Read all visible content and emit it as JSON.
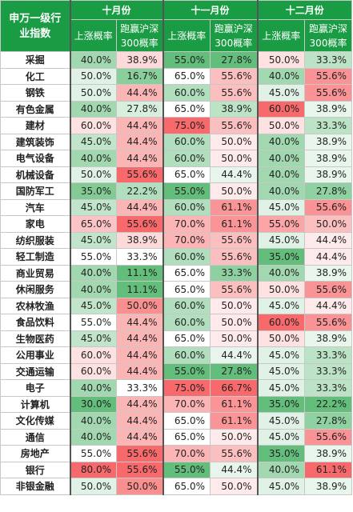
{
  "table": {
    "corner_label": "申万一级行业指数",
    "months": [
      "十月份",
      "十一月份",
      "十二月份"
    ],
    "sub_headers": [
      "上涨概率",
      "跑赢沪深300概率"
    ],
    "colors": {
      "header_bg": "#1a9c44",
      "up_high": "#f8696b",
      "neutral": "#ffffff",
      "outperform_high": "#63be7b"
    },
    "rows": [
      {
        "industry": "采掘",
        "values": [
          "40.0%",
          "38.9%",
          "55.0%",
          "27.8%",
          "50.0%",
          "33.3%"
        ]
      },
      {
        "industry": "化工",
        "values": [
          "50.0%",
          "16.7%",
          "65.0%",
          "55.6%",
          "40.0%",
          "55.6%"
        ]
      },
      {
        "industry": "钢铁",
        "values": [
          "50.0%",
          "44.4%",
          "60.0%",
          "55.6%",
          "45.0%",
          "55.6%"
        ]
      },
      {
        "industry": "有色金属",
        "values": [
          "40.0%",
          "27.8%",
          "65.0%",
          "38.9%",
          "60.0%",
          "38.9%"
        ]
      },
      {
        "industry": "建材",
        "values": [
          "60.0%",
          "44.4%",
          "75.0%",
          "55.6%",
          "50.0%",
          "33.3%"
        ]
      },
      {
        "industry": "建筑装饰",
        "values": [
          "45.0%",
          "44.4%",
          "60.0%",
          "50.0%",
          "40.0%",
          "38.9%"
        ]
      },
      {
        "industry": "电气设备",
        "values": [
          "40.0%",
          "44.4%",
          "60.0%",
          "50.0%",
          "40.0%",
          "38.9%"
        ]
      },
      {
        "industry": "机械设备",
        "values": [
          "50.0%",
          "55.6%",
          "65.0%",
          "44.4%",
          "40.0%",
          "38.9%"
        ]
      },
      {
        "industry": "国防军工",
        "values": [
          "35.0%",
          "22.2%",
          "55.0%",
          "50.0%",
          "40.0%",
          "27.8%"
        ]
      },
      {
        "industry": "汽车",
        "values": [
          "45.0%",
          "44.4%",
          "60.0%",
          "61.1%",
          "45.0%",
          "55.6%"
        ]
      },
      {
        "industry": "家电",
        "values": [
          "65.0%",
          "55.6%",
          "70.0%",
          "61.1%",
          "55.0%",
          "50.0%"
        ]
      },
      {
        "industry": "纺织服装",
        "values": [
          "45.0%",
          "38.9%",
          "70.0%",
          "55.6%",
          "45.0%",
          "44.4%"
        ]
      },
      {
        "industry": "轻工制造",
        "values": [
          "55.0%",
          "33.3%",
          "60.0%",
          "55.6%",
          "35.0%",
          "44.4%"
        ]
      },
      {
        "industry": "商业贸易",
        "values": [
          "40.0%",
          "11.1%",
          "65.0%",
          "33.3%",
          "40.0%",
          "38.9%"
        ]
      },
      {
        "industry": "休闲服务",
        "values": [
          "40.0%",
          "11.1%",
          "65.0%",
          "55.6%",
          "50.0%",
          "55.6%"
        ]
      },
      {
        "industry": "农林牧渔",
        "values": [
          "45.0%",
          "50.0%",
          "60.0%",
          "50.0%",
          "45.0%",
          "44.4%"
        ]
      },
      {
        "industry": "食品饮料",
        "values": [
          "55.0%",
          "44.4%",
          "60.0%",
          "50.0%",
          "60.0%",
          "55.6%"
        ]
      },
      {
        "industry": "生物医药",
        "values": [
          "45.0%",
          "44.4%",
          "65.0%",
          "50.0%",
          "50.0%",
          "38.9%"
        ]
      },
      {
        "industry": "公用事业",
        "values": [
          "60.0%",
          "44.4%",
          "60.0%",
          "44.4%",
          "45.0%",
          "33.3%"
        ]
      },
      {
        "industry": "交通运输",
        "values": [
          "60.0%",
          "44.4%",
          "55.0%",
          "27.8%",
          "45.0%",
          "33.3%"
        ]
      },
      {
        "industry": "电子",
        "values": [
          "40.0%",
          "33.3%",
          "75.0%",
          "66.7%",
          "45.0%",
          "33.3%"
        ]
      },
      {
        "industry": "计算机",
        "values": [
          "30.0%",
          "44.4%",
          "70.0%",
          "61.1%",
          "35.0%",
          "22.2%"
        ]
      },
      {
        "industry": "文化传媒",
        "values": [
          "40.0%",
          "44.4%",
          "65.0%",
          "61.1%",
          "45.0%",
          "27.8%"
        ]
      },
      {
        "industry": "通信",
        "values": [
          "40.0%",
          "44.4%",
          "65.0%",
          "50.0%",
          "45.0%",
          "55.6%"
        ]
      },
      {
        "industry": "房地产",
        "values": [
          "55.0%",
          "55.6%",
          "70.0%",
          "55.6%",
          "35.0%",
          "38.9%"
        ]
      },
      {
        "industry": "银行",
        "values": [
          "80.0%",
          "55.6%",
          "55.0%",
          "44.4%",
          "40.0%",
          "61.1%"
        ]
      },
      {
        "industry": "非银金融",
        "values": [
          "50.0%",
          "50.0%",
          "65.0%",
          "50.0%",
          "45.0%",
          "38.9%"
        ]
      }
    ]
  },
  "chart_data": {
    "type": "table",
    "title": "",
    "row_header": "申万一级行业指数",
    "column_groups": [
      "十月份",
      "十一月份",
      "十二月份"
    ],
    "columns": [
      "上涨概率",
      "跑赢沪深300概率"
    ],
    "categories": [
      "采掘",
      "化工",
      "钢铁",
      "有色金属",
      "建材",
      "建筑装饰",
      "电气设备",
      "机械设备",
      "国防军工",
      "汽车",
      "家电",
      "纺织服装",
      "轻工制造",
      "商业贸易",
      "休闲服务",
      "农林牧渔",
      "食品饮料",
      "生物医药",
      "公用事业",
      "交通运输",
      "电子",
      "计算机",
      "文化传媒",
      "通信",
      "房地产",
      "银行",
      "非银金融"
    ],
    "series": [
      {
        "name": "十月份 上涨概率",
        "values": [
          40.0,
          50.0,
          50.0,
          40.0,
          60.0,
          45.0,
          40.0,
          50.0,
          35.0,
          45.0,
          65.0,
          45.0,
          55.0,
          40.0,
          40.0,
          45.0,
          55.0,
          45.0,
          60.0,
          60.0,
          40.0,
          30.0,
          40.0,
          40.0,
          55.0,
          80.0,
          50.0
        ]
      },
      {
        "name": "十月份 跑赢沪深300概率",
        "values": [
          38.9,
          16.7,
          44.4,
          27.8,
          44.4,
          44.4,
          44.4,
          55.6,
          22.2,
          44.4,
          55.6,
          38.9,
          33.3,
          11.1,
          11.1,
          50.0,
          44.4,
          44.4,
          44.4,
          44.4,
          33.3,
          44.4,
          44.4,
          44.4,
          55.6,
          55.6,
          50.0
        ]
      },
      {
        "name": "十一月份 上涨概率",
        "values": [
          55.0,
          65.0,
          60.0,
          65.0,
          75.0,
          60.0,
          60.0,
          65.0,
          55.0,
          60.0,
          70.0,
          70.0,
          60.0,
          65.0,
          65.0,
          60.0,
          60.0,
          65.0,
          60.0,
          55.0,
          75.0,
          70.0,
          65.0,
          65.0,
          70.0,
          55.0,
          65.0
        ]
      },
      {
        "name": "十一月份 跑赢沪深300概率",
        "values": [
          27.8,
          55.6,
          55.6,
          38.9,
          55.6,
          50.0,
          50.0,
          44.4,
          50.0,
          61.1,
          61.1,
          55.6,
          55.6,
          33.3,
          55.6,
          50.0,
          50.0,
          50.0,
          44.4,
          27.8,
          66.7,
          61.1,
          61.1,
          50.0,
          55.6,
          44.4,
          50.0
        ]
      },
      {
        "name": "十二月份 上涨概率",
        "values": [
          50.0,
          40.0,
          45.0,
          60.0,
          50.0,
          40.0,
          40.0,
          40.0,
          40.0,
          45.0,
          55.0,
          45.0,
          35.0,
          40.0,
          50.0,
          45.0,
          60.0,
          50.0,
          45.0,
          45.0,
          45.0,
          35.0,
          45.0,
          45.0,
          35.0,
          40.0,
          45.0
        ]
      },
      {
        "name": "十二月份 跑赢沪深300概率",
        "values": [
          33.3,
          55.6,
          55.6,
          38.9,
          33.3,
          38.9,
          38.9,
          38.9,
          27.8,
          55.6,
          50.0,
          44.4,
          44.4,
          38.9,
          55.6,
          44.4,
          55.6,
          38.9,
          33.3,
          33.3,
          33.3,
          22.2,
          27.8,
          55.6,
          38.9,
          61.1,
          38.9
        ]
      }
    ]
  }
}
